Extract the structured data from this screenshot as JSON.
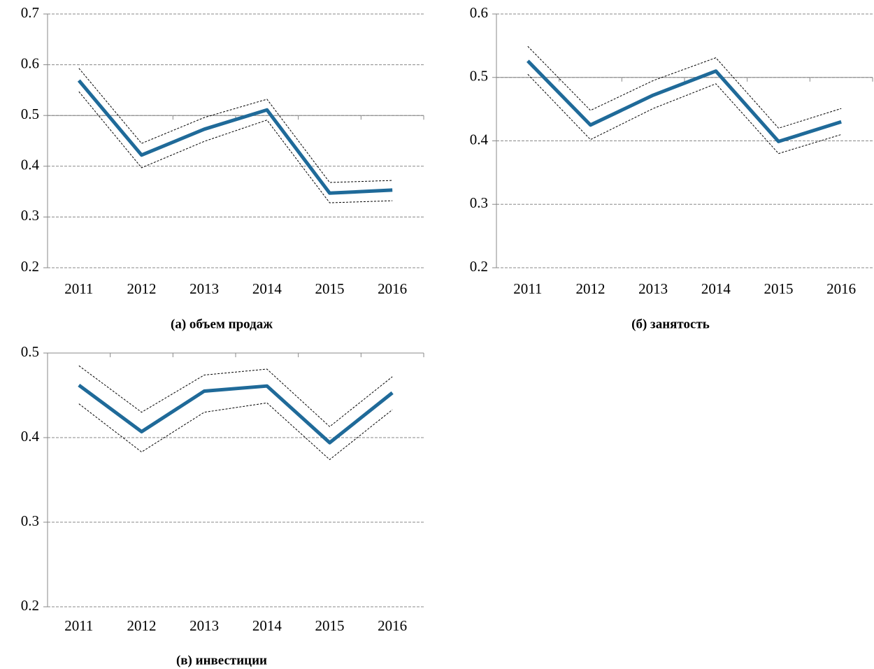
{
  "chart_data": [
    {
      "type": "line",
      "title": "(а) объем продаж",
      "categories": [
        "2011",
        "2012",
        "2013",
        "2014",
        "2015",
        "2016"
      ],
      "ylim": [
        0.2,
        0.7
      ],
      "yticks": [
        0.2,
        0.3,
        0.4,
        0.5,
        0.6,
        0.7
      ],
      "grid": true,
      "axis_cross": 0.5,
      "series": [
        {
          "color": "#1f6a99",
          "dashed": false,
          "values": [
            0.569,
            0.422,
            0.473,
            0.511,
            0.347,
            0.353
          ]
        },
        {
          "color": "#000000",
          "dashed": true,
          "values": [
            0.593,
            0.445,
            0.496,
            0.532,
            0.368,
            0.372
          ]
        },
        {
          "color": "#000000",
          "dashed": true,
          "values": [
            0.547,
            0.397,
            0.449,
            0.491,
            0.328,
            0.332
          ]
        }
      ]
    },
    {
      "type": "line",
      "title": "(б) занятость",
      "categories": [
        "2011",
        "2012",
        "2013",
        "2014",
        "2015",
        "2016"
      ],
      "ylim": [
        0.2,
        0.6
      ],
      "yticks": [
        0.2,
        0.3,
        0.4,
        0.5,
        0.6
      ],
      "grid": true,
      "axis_cross": 0.5,
      "series": [
        {
          "color": "#1f6a99",
          "dashed": false,
          "values": [
            0.526,
            0.425,
            0.472,
            0.51,
            0.399,
            0.43
          ]
        },
        {
          "color": "#000000",
          "dashed": true,
          "values": [
            0.549,
            0.448,
            0.495,
            0.531,
            0.42,
            0.451
          ]
        },
        {
          "color": "#000000",
          "dashed": true,
          "values": [
            0.505,
            0.402,
            0.451,
            0.49,
            0.38,
            0.41
          ]
        }
      ]
    },
    {
      "type": "line",
      "title": "(в) инвестиции",
      "categories": [
        "2011",
        "2012",
        "2013",
        "2014",
        "2015",
        "2016"
      ],
      "ylim": [
        0.2,
        0.5
      ],
      "yticks": [
        0.2,
        0.3,
        0.4,
        0.5
      ],
      "grid": true,
      "axis_cross": 0.5,
      "series": [
        {
          "color": "#1f6a99",
          "dashed": false,
          "values": [
            0.462,
            0.407,
            0.455,
            0.461,
            0.394,
            0.453
          ]
        },
        {
          "color": "#000000",
          "dashed": true,
          "values": [
            0.485,
            0.43,
            0.474,
            0.481,
            0.413,
            0.472
          ]
        },
        {
          "color": "#000000",
          "dashed": true,
          "values": [
            0.44,
            0.383,
            0.43,
            0.441,
            0.374,
            0.433
          ]
        }
      ]
    }
  ]
}
